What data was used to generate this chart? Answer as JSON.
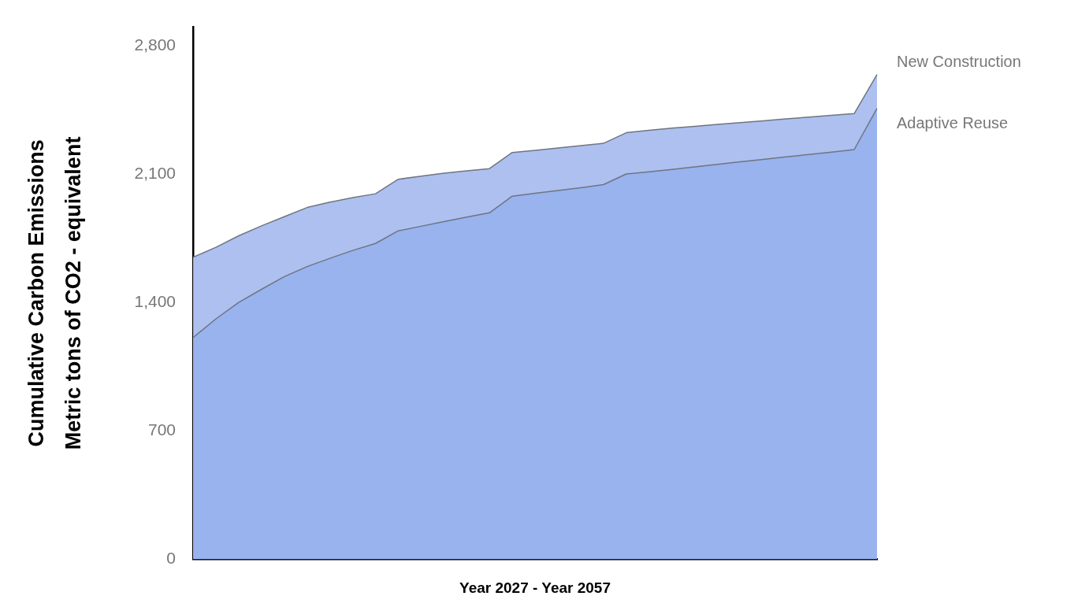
{
  "chart_data": {
    "type": "area",
    "xlabel": "Year 2027 - Year 2057",
    "ylabel": "Cumulative Carbon Emissions\nMetric tons of CO2 - equivalent",
    "categories": [
      null,
      null,
      null,
      null,
      null,
      null,
      null,
      null,
      null,
      null,
      null,
      null,
      null,
      null,
      null,
      null,
      null,
      null,
      null,
      null,
      null,
      null,
      null,
      null,
      null,
      null,
      null,
      null,
      null,
      null,
      null
    ],
    "series": [
      {
        "name": "New Construction",
        "color": "#adc0f0",
        "values": [
          1646,
          1700,
          1763,
          1817,
          1867,
          1917,
          1946,
          1971,
          1992,
          2071,
          2088,
          2104,
          2117,
          2129,
          2217,
          2229,
          2242,
          2254,
          2267,
          2325,
          2338,
          2350,
          2360,
          2370,
          2380,
          2390,
          2400,
          2410,
          2420,
          2429,
          2642
        ]
      },
      {
        "name": "Adaptive Reuse",
        "color": "#98b3ee",
        "values": [
          1208,
          1310,
          1400,
          1471,
          1540,
          1595,
          1640,
          1683,
          1721,
          1790,
          1815,
          1840,
          1865,
          1888,
          1979,
          1995,
          2010,
          2025,
          2042,
          2100,
          2112,
          2125,
          2139,
          2152,
          2166,
          2179,
          2193,
          2206,
          2219,
          2233,
          2458
        ]
      }
    ],
    "ylim": [
      0,
      2900
    ],
    "yticks": [
      0,
      700,
      {
        "value": 1400,
        "label": "1,400"
      },
      {
        "value": 2100,
        "label": "2,100"
      },
      {
        "value": 2800,
        "label": "2,800"
      }
    ]
  }
}
